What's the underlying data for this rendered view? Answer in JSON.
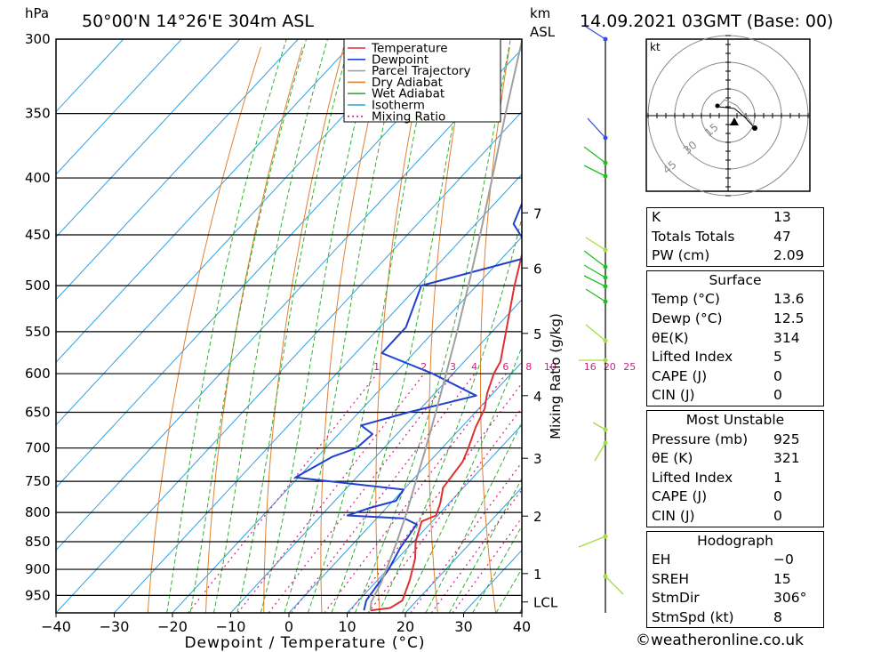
{
  "header": {
    "location": "50°00'N  14°26'E  304m  ASL",
    "datetime": "14.09.2021  03GMT  (Base: 00)",
    "unit_left": "hPa",
    "unit_km": "km",
    "unit_asl": "ASL"
  },
  "footer": "©weatheronline.co.uk",
  "colors": {
    "temperature": "#e03030",
    "dewpoint": "#2040d0",
    "parcel": "#a0a0a0",
    "dry_adiabat": "#e08030",
    "wet_adiabat": "#30b030",
    "isotherm": "#30a0e0",
    "mixing_ratio": "#d0208a",
    "wind_top": "#3050e0",
    "wind_mid": "#20c020",
    "wind_low": "#a0e040"
  },
  "legend": [
    "Temperature",
    "Dewpoint",
    "Parcel Trajectory",
    "Dry Adiabat",
    "Wet Adiabat",
    "Isotherm",
    "Mixing Ratio"
  ],
  "chart_data": {
    "type": "line",
    "title": "50°00'N  14°26'E  304m  ASL",
    "xlabel": "Dewpoint / Temperature (°C)",
    "ylabel": "hPa",
    "xlim": [
      -40,
      40
    ],
    "ylim": [
      985,
      300
    ],
    "yscale": "log",
    "skew": "skew-T",
    "x_ticks": [
      -40,
      -30,
      -20,
      -10,
      0,
      10,
      20,
      30,
      40
    ],
    "x_tick_labels": [
      "−40",
      "−30",
      "−20",
      "−10",
      "0",
      "10",
      "20",
      "30",
      "40"
    ],
    "pressure_ticks": [
      300,
      350,
      400,
      450,
      500,
      550,
      600,
      650,
      700,
      750,
      800,
      850,
      900,
      950
    ],
    "km_ticks": [
      {
        "label": "7",
        "p": 430
      },
      {
        "label": "6",
        "p": 482
      },
      {
        "label": "5",
        "p": 552
      },
      {
        "label": "4",
        "p": 628
      },
      {
        "label": "3",
        "p": 715
      },
      {
        "label": "2",
        "p": 806
      },
      {
        "label": "1",
        "p": 908
      },
      {
        "label": "LCL",
        "p": 963
      }
    ],
    "mixing_ratio_label": "Mixing Ratio (g/kg)",
    "mixing_ratio_values": [
      "1",
      "2",
      "3",
      "4",
      "6",
      "8",
      "10",
      "16",
      "20",
      "25"
    ],
    "series": [
      {
        "name": "Temperature",
        "points": [
          [
            980,
            13.6
          ],
          [
            975,
            16.6
          ],
          [
            960,
            17.5
          ],
          [
            920,
            15.5
          ],
          [
            880,
            13
          ],
          [
            850,
            10.4
          ],
          [
            815,
            8.2
          ],
          [
            805,
            9.7
          ],
          [
            785,
            8.5
          ],
          [
            760,
            6.5
          ],
          [
            720,
            5.7
          ],
          [
            700,
            4.5
          ],
          [
            670,
            2.4
          ],
          [
            645,
            1.0
          ],
          [
            625,
            -1.0
          ],
          [
            600,
            -3.0
          ],
          [
            585,
            -3.8
          ],
          [
            560,
            -6.5
          ],
          [
            500,
            -13.5
          ],
          [
            450,
            -19.5
          ],
          [
            420,
            -23.5
          ],
          [
            400,
            -27.5
          ],
          [
            380,
            -31.5
          ],
          [
            350,
            -38
          ],
          [
            300,
            -48
          ]
        ]
      },
      {
        "name": "Dewpoint",
        "points": [
          [
            980,
            12.5
          ],
          [
            960,
            11.3
          ],
          [
            900,
            10.2
          ],
          [
            860,
            8.7
          ],
          [
            840,
            8.3
          ],
          [
            820,
            7.8
          ],
          [
            810,
            4.8
          ],
          [
            805,
            -5.5
          ],
          [
            793,
            -3.0
          ],
          [
            781,
            0.5
          ],
          [
            763,
            0.0
          ],
          [
            744,
            -20.5
          ],
          [
            713,
            -17.5
          ],
          [
            700,
            -14.7
          ],
          [
            680,
            -14.2
          ],
          [
            668,
            -17.5
          ],
          [
            650,
            -11.5
          ],
          [
            628,
            -2.5
          ],
          [
            600,
            -13.5
          ],
          [
            575,
            -25.5
          ],
          [
            545,
            -25.5
          ],
          [
            500,
            -29.5
          ],
          [
            470,
            -15.0
          ],
          [
            440,
            -23.5
          ],
          [
            420,
            -25.5
          ],
          [
            400,
            -27.5
          ],
          [
            350,
            -39
          ],
          [
            300,
            -50
          ]
        ]
      },
      {
        "name": "Parcel Trajectory",
        "points": [
          [
            980,
            13.6
          ],
          [
            963,
            12.4
          ],
          [
            925,
            11.0
          ],
          [
            900,
            9.8
          ],
          [
            850,
            7.2
          ],
          [
            800,
            4.2
          ],
          [
            750,
            0.8
          ],
          [
            700,
            -2.8
          ],
          [
            650,
            -6.8
          ],
          [
            600,
            -11.2
          ],
          [
            550,
            -16.0
          ],
          [
            500,
            -21.4
          ],
          [
            450,
            -27.5
          ],
          [
            400,
            -34.5
          ],
          [
            350,
            -42.5
          ],
          [
            300,
            -51.5
          ]
        ]
      }
    ]
  },
  "hodograph": {
    "unit": "kt",
    "rings": [
      "15",
      "30",
      "45"
    ]
  },
  "indices": {
    "rows": [
      {
        "label": "K",
        "value": "13"
      },
      {
        "label": "Totals Totals",
        "value": "47"
      },
      {
        "label": "PW (cm)",
        "value": "2.09"
      }
    ]
  },
  "surface": {
    "title": "Surface",
    "rows": [
      {
        "label": "Temp (°C)",
        "value": "13.6"
      },
      {
        "label": "Dewp (°C)",
        "value": "12.5"
      },
      {
        "label": "θE(K)",
        "value": "314"
      },
      {
        "label": "Lifted Index",
        "value": "5"
      },
      {
        "label": "CAPE (J)",
        "value": "0"
      },
      {
        "label": "CIN (J)",
        "value": "0"
      }
    ]
  },
  "most_unstable": {
    "title": "Most Unstable",
    "rows": [
      {
        "label": "Pressure (mb)",
        "value": "925"
      },
      {
        "label": "θE (K)",
        "value": "321"
      },
      {
        "label": "Lifted Index",
        "value": "1"
      },
      {
        "label": "CAPE (J)",
        "value": "0"
      },
      {
        "label": "CIN (J)",
        "value": "0"
      }
    ]
  },
  "hodograph_table": {
    "title": "Hodograph",
    "rows": [
      {
        "label": "EH",
        "value": "−0"
      },
      {
        "label": "SREH",
        "value": "15"
      },
      {
        "label": "StmDir",
        "value": "306°"
      },
      {
        "label": "StmSpd (kt)",
        "value": "8"
      }
    ]
  }
}
